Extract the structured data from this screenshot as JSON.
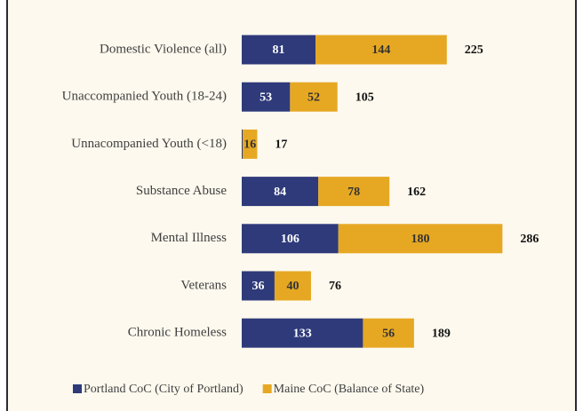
{
  "chart_data": {
    "type": "stacked-barh",
    "categories": [
      "Domestic Violence (all)",
      "Unaccompanied Youth (18-24)",
      "Unnacompanied Youth (<18)",
      "Substance Abuse",
      "Mental Illness",
      "Veterans",
      "Chronic Homeless"
    ],
    "series": [
      {
        "name": "Portland CoC (City of Portland)",
        "color": "#2e3a7a",
        "values": [
          81,
          53,
          1,
          84,
          106,
          36,
          133
        ],
        "value_labels": [
          "81",
          "53",
          null,
          "84",
          "106",
          "36",
          "133"
        ]
      },
      {
        "name": "Maine CoC (Balance of State)",
        "color": "#e6a823",
        "values": [
          144,
          52,
          16,
          78,
          180,
          40,
          56
        ],
        "value_labels": [
          "144",
          "52",
          "16",
          "78",
          "180",
          "40",
          "56"
        ]
      }
    ],
    "totals": [
      225,
      105,
      17,
      162,
      286,
      76,
      189
    ],
    "xlim": [
      0,
      350
    ],
    "legend": "bottom"
  }
}
